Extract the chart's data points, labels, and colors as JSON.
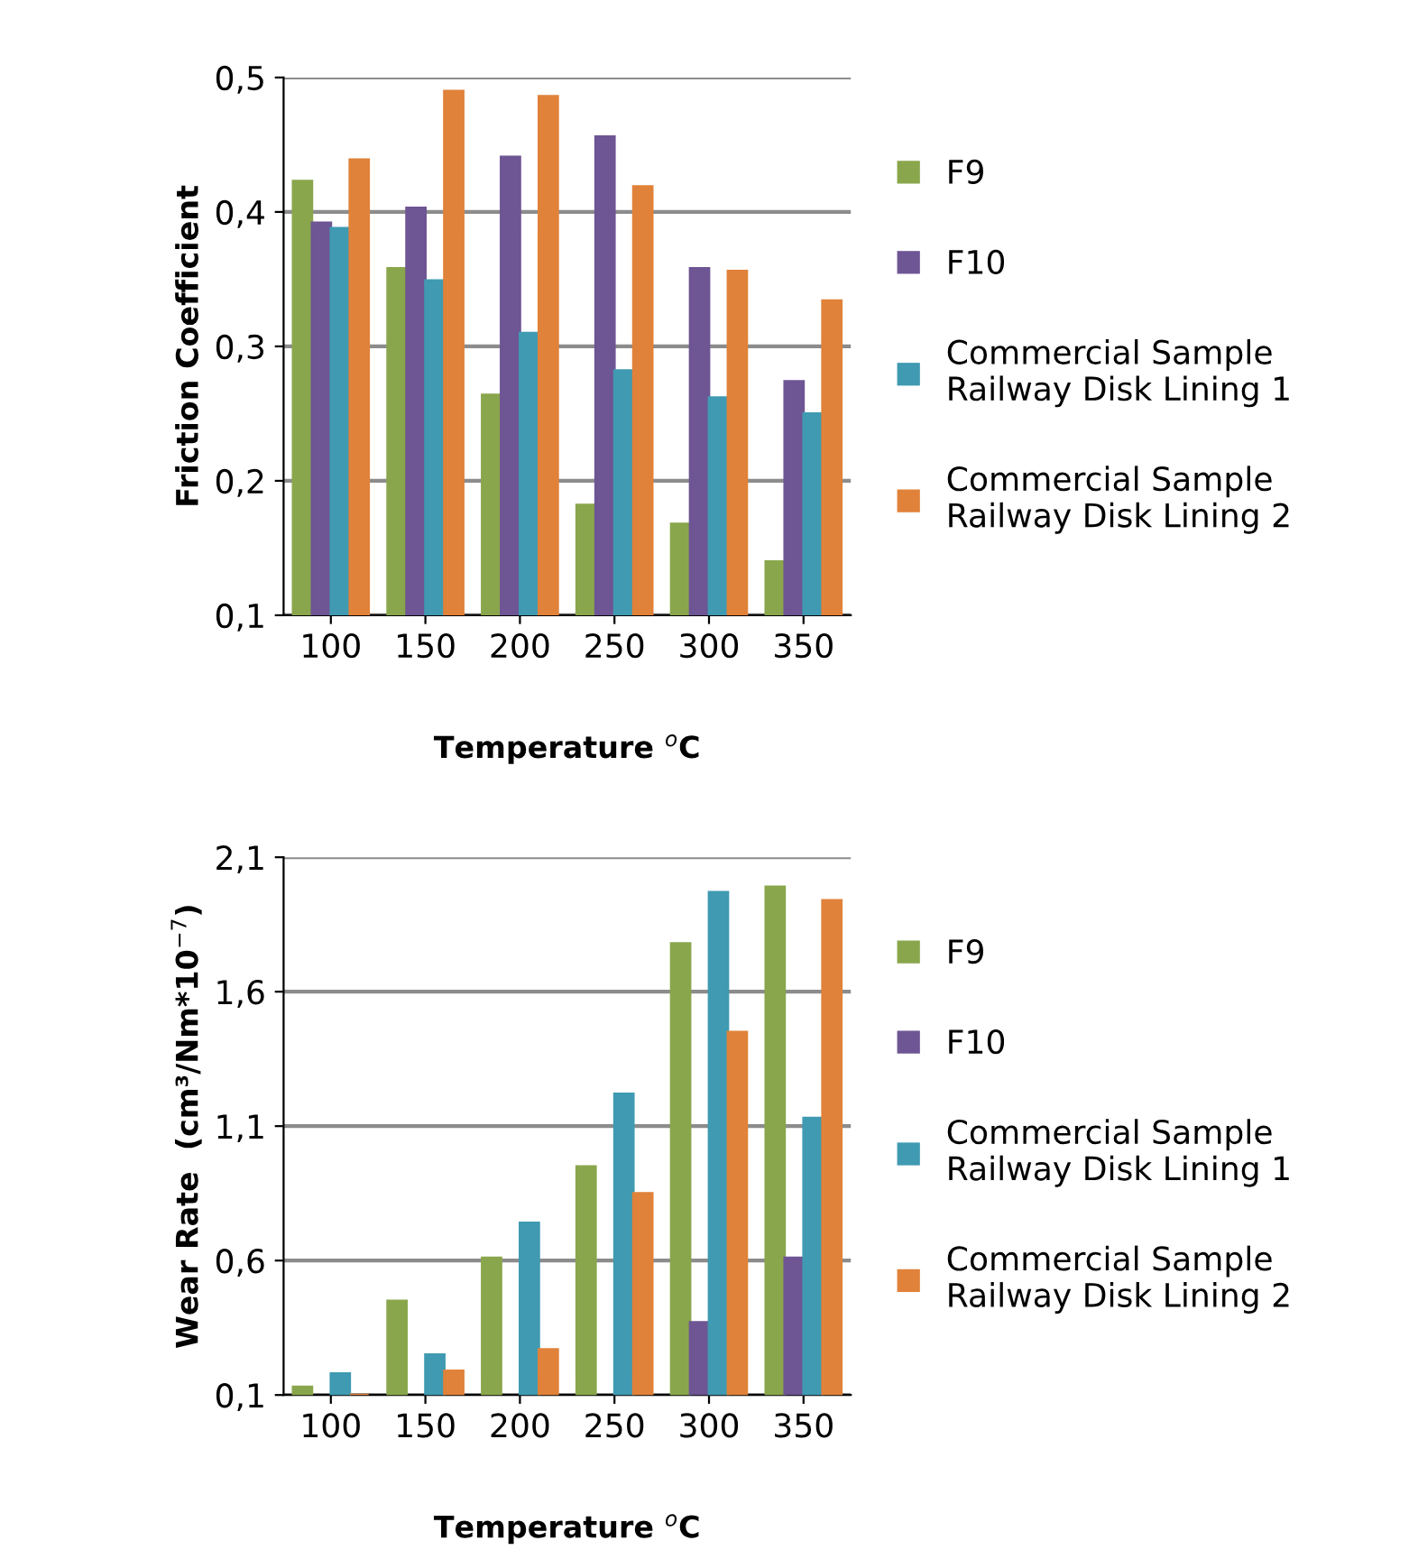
{
  "chart_data": [
    {
      "type": "bar",
      "xlabel": "Temperature $^{o}$C",
      "ylabel": "Friction Coefficient",
      "categories": [
        "100",
        "150",
        "200",
        "250",
        "300",
        "350"
      ],
      "ylim": [
        0.1,
        0.5
      ],
      "yticks": [
        {
          "value": 0.1,
          "label": "0,1"
        },
        {
          "value": 0.2,
          "label": "0,2"
        },
        {
          "value": 0.3,
          "label": "0,3"
        },
        {
          "value": 0.4,
          "label": "0,4"
        },
        {
          "value": 0.5,
          "label": "0,5"
        }
      ],
      "grid": "y",
      "legend": "right",
      "series": [
        {
          "name": "F9",
          "color": "#8aa64c",
          "values": [
            0.423,
            0.358,
            0.264,
            0.182,
            0.168,
            0.14
          ]
        },
        {
          "name": "F10",
          "color": "#6e5594",
          "values": [
            0.392,
            0.403,
            0.441,
            0.456,
            0.358,
            0.274
          ]
        },
        {
          "name": "Commercial Sample\nRailway Disk Lining 1",
          "color": "#3f9ab2",
          "values": [
            0.388,
            0.349,
            0.31,
            0.282,
            0.262,
            0.25
          ]
        },
        {
          "name": "Commercial Sample\nRailway Disk Lining 2",
          "color": "#e0823a",
          "values": [
            0.439,
            0.49,
            0.486,
            0.419,
            0.356,
            0.334
          ]
        }
      ]
    },
    {
      "type": "bar",
      "xlabel": "Temperature $^{o}$C",
      "ylabel": "Wear Rate  (cm³/Nm*10$^{−7}$)",
      "categories": [
        "100",
        "150",
        "200",
        "250",
        "300",
        "350"
      ],
      "ylim": [
        0.1,
        2.1
      ],
      "yticks": [
        {
          "value": 0.1,
          "label": "0,1"
        },
        {
          "value": 0.6,
          "label": "0,6"
        },
        {
          "value": 1.1,
          "label": "1,1"
        },
        {
          "value": 1.6,
          "label": "1,6"
        },
        {
          "value": 2.1,
          "label": "2,1"
        }
      ],
      "grid": "y",
      "legend": "right",
      "series": [
        {
          "name": "F9",
          "color": "#8aa64c",
          "values": [
            0.13,
            0.45,
            0.61,
            0.95,
            1.78,
            1.99
          ]
        },
        {
          "name": "F10",
          "color": "#6e5594",
          "values": [
            null,
            null,
            null,
            null,
            0.37,
            0.61
          ]
        },
        {
          "name": "Commercial Sample\nRailway Disk Lining 1",
          "color": "#3f9ab2",
          "values": [
            0.18,
            0.25,
            0.74,
            1.22,
            1.97,
            1.13
          ]
        },
        {
          "name": "Commercial Sample\nRailway Disk Lining 2",
          "color": "#e0823a",
          "values": [
            0.1,
            0.19,
            0.27,
            0.85,
            1.45,
            1.94
          ]
        }
      ]
    }
  ]
}
